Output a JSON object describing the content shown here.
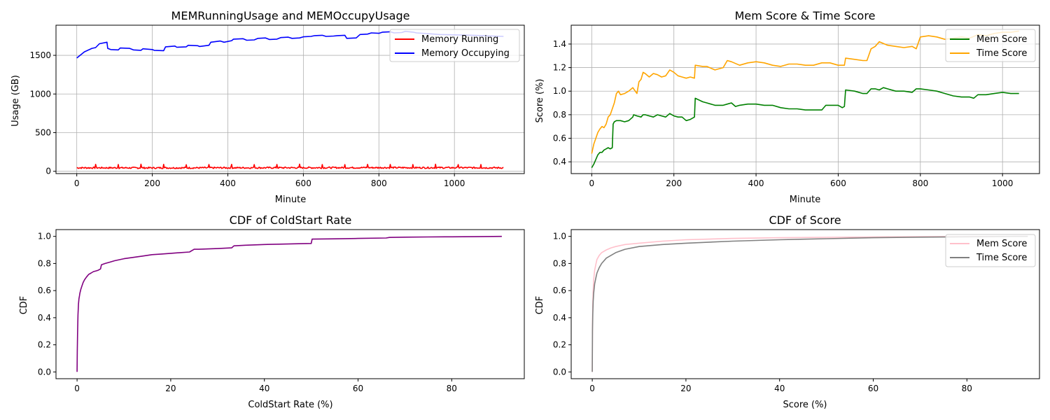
{
  "chart_data": [
    {
      "type": "line",
      "title": "MEMRunningUsage and MEMOccupyUsage",
      "xlabel": "Minute",
      "ylabel": "Usage (GB)",
      "xlim": [
        -55,
        1185
      ],
      "ylim": [
        -30,
        1890
      ],
      "xticks": [
        0,
        200,
        400,
        600,
        800,
        1000
      ],
      "yticks": [
        0,
        500,
        1000,
        1500
      ],
      "grid": true,
      "legend_position": "upper-right",
      "series": [
        {
          "name": "Memory Running",
          "color": "#ff0000",
          "baseline_x": [
            0,
            200,
            400,
            600,
            800,
            1000,
            1130
          ],
          "baseline_y": [
            45,
            44,
            45,
            46,
            47,
            46,
            45
          ],
          "noise_amplitude": 10,
          "spikes_x": [
            50,
            110,
            170,
            230,
            290,
            350,
            410,
            470,
            530,
            590,
            650,
            710,
            770,
            830,
            890,
            950,
            1010,
            1070
          ],
          "spikes_y": [
            90,
            88,
            92,
            90,
            85,
            88,
            90,
            87,
            89,
            92,
            88,
            87,
            90,
            89,
            88,
            91,
            87,
            88
          ]
        },
        {
          "name": "Memory Occupying",
          "color": "#0000ff",
          "x": [
            0,
            20,
            40,
            50,
            60,
            80,
            82,
            90,
            110,
            115,
            140,
            150,
            170,
            175,
            200,
            205,
            230,
            235,
            260,
            265,
            290,
            295,
            320,
            325,
            350,
            355,
            380,
            390,
            410,
            415,
            440,
            450,
            470,
            480,
            500,
            510,
            530,
            540,
            560,
            570,
            590,
            600,
            620,
            630,
            650,
            660,
            680,
            690,
            710,
            715,
            740,
            750,
            770,
            780,
            800,
            810,
            830,
            840,
            860,
            870,
            890,
            900,
            930,
            960,
            1000,
            1050,
            1130
          ],
          "y": [
            1465,
            1545,
            1590,
            1600,
            1650,
            1670,
            1590,
            1575,
            1570,
            1595,
            1590,
            1570,
            1565,
            1585,
            1575,
            1565,
            1560,
            1610,
            1620,
            1605,
            1610,
            1630,
            1625,
            1615,
            1630,
            1670,
            1685,
            1670,
            1690,
            1710,
            1715,
            1695,
            1700,
            1720,
            1725,
            1705,
            1710,
            1730,
            1735,
            1720,
            1725,
            1740,
            1745,
            1755,
            1760,
            1745,
            1750,
            1755,
            1760,
            1720,
            1725,
            1770,
            1775,
            1790,
            1785,
            1800,
            1805,
            1790,
            1795,
            1810,
            1800,
            1790,
            1780,
            1770,
            1765,
            1760,
            1745
          ]
        }
      ]
    },
    {
      "type": "line",
      "title": "Mem Score & Time Score",
      "xlabel": "Minute",
      "ylabel": "Score (%)",
      "xlim": [
        -50,
        1090
      ],
      "ylim": [
        0.3,
        1.56
      ],
      "xticks": [
        0,
        200,
        400,
        600,
        800,
        1000
      ],
      "yticks": [
        0.4,
        0.6,
        0.8,
        1.0,
        1.2,
        1.4
      ],
      "grid": true,
      "legend_position": "upper-right",
      "series": [
        {
          "name": "Mem Score",
          "color": "#008000",
          "x": [
            0,
            5,
            10,
            15,
            20,
            25,
            30,
            35,
            40,
            45,
            50,
            52,
            55,
            60,
            70,
            80,
            90,
            100,
            102,
            110,
            120,
            125,
            130,
            140,
            150,
            160,
            170,
            180,
            190,
            200,
            210,
            220,
            230,
            240,
            250,
            252,
            270,
            280,
            300,
            320,
            330,
            340,
            350,
            360,
            380,
            400,
            420,
            440,
            460,
            480,
            500,
            520,
            540,
            560,
            570,
            580,
            600,
            610,
            615,
            618,
            640,
            660,
            670,
            680,
            690,
            700,
            710,
            720,
            740,
            760,
            780,
            790,
            800,
            820,
            840,
            860,
            880,
            900,
            920,
            930,
            940,
            960,
            980,
            1000,
            1020,
            1040
          ],
          "y": [
            0.35,
            0.38,
            0.42,
            0.46,
            0.48,
            0.48,
            0.5,
            0.51,
            0.52,
            0.51,
            0.52,
            0.72,
            0.74,
            0.75,
            0.75,
            0.74,
            0.75,
            0.78,
            0.8,
            0.79,
            0.78,
            0.8,
            0.8,
            0.79,
            0.78,
            0.8,
            0.79,
            0.78,
            0.81,
            0.79,
            0.78,
            0.78,
            0.75,
            0.76,
            0.78,
            0.94,
            0.91,
            0.9,
            0.88,
            0.88,
            0.89,
            0.9,
            0.87,
            0.88,
            0.89,
            0.89,
            0.88,
            0.88,
            0.86,
            0.85,
            0.85,
            0.84,
            0.84,
            0.84,
            0.88,
            0.88,
            0.88,
            0.86,
            0.87,
            1.01,
            1.0,
            0.98,
            0.98,
            1.02,
            1.02,
            1.01,
            1.03,
            1.02,
            1.0,
            1.0,
            0.99,
            1.02,
            1.02,
            1.01,
            1.0,
            0.98,
            0.96,
            0.95,
            0.95,
            0.94,
            0.97,
            0.97,
            0.98,
            0.99,
            0.98,
            0.98
          ]
        },
        {
          "name": "Time Score",
          "color": "#ffa500",
          "x": [
            0,
            5,
            10,
            15,
            20,
            25,
            30,
            35,
            40,
            45,
            50,
            55,
            60,
            65,
            70,
            80,
            90,
            100,
            110,
            115,
            120,
            125,
            130,
            140,
            150,
            160,
            170,
            180,
            190,
            200,
            210,
            220,
            230,
            240,
            250,
            252,
            270,
            280,
            300,
            320,
            330,
            340,
            360,
            380,
            400,
            420,
            440,
            460,
            480,
            500,
            520,
            540,
            560,
            580,
            600,
            610,
            615,
            618,
            640,
            660,
            670,
            680,
            690,
            700,
            720,
            740,
            760,
            780,
            790,
            800,
            820,
            840,
            860,
            880,
            900,
            920,
            940,
            960,
            980,
            1000,
            1020,
            1040
          ],
          "y": [
            0.47,
            0.55,
            0.6,
            0.65,
            0.68,
            0.7,
            0.69,
            0.72,
            0.78,
            0.8,
            0.85,
            0.9,
            0.98,
            1.0,
            0.97,
            0.98,
            1.0,
            1.03,
            0.98,
            1.08,
            1.1,
            1.16,
            1.15,
            1.12,
            1.15,
            1.14,
            1.12,
            1.13,
            1.18,
            1.16,
            1.13,
            1.12,
            1.11,
            1.12,
            1.11,
            1.22,
            1.21,
            1.21,
            1.18,
            1.2,
            1.26,
            1.25,
            1.22,
            1.24,
            1.25,
            1.24,
            1.22,
            1.21,
            1.23,
            1.23,
            1.22,
            1.22,
            1.24,
            1.24,
            1.22,
            1.22,
            1.22,
            1.28,
            1.27,
            1.26,
            1.26,
            1.36,
            1.38,
            1.42,
            1.39,
            1.38,
            1.37,
            1.38,
            1.36,
            1.46,
            1.47,
            1.46,
            1.44,
            1.45,
            1.46,
            1.45,
            1.48,
            1.47,
            1.49,
            1.5,
            1.5,
            1.51
          ]
        }
      ]
    },
    {
      "type": "line",
      "title": "CDF of ColdStart Rate",
      "xlabel": "ColdStart Rate (%)",
      "ylabel": "CDF",
      "xlim": [
        -4.5,
        95.5
      ],
      "ylim": [
        -0.05,
        1.05
      ],
      "xticks": [
        0,
        20,
        40,
        60,
        80
      ],
      "yticks": [
        0.0,
        0.2,
        0.4,
        0.6,
        0.8,
        1.0
      ],
      "grid": false,
      "series": [
        {
          "name": "",
          "color": "#800080",
          "x": [
            0,
            0.05,
            0.1,
            0.2,
            0.3,
            0.4,
            0.5,
            0.6,
            0.8,
            1,
            1.3,
            1.6,
            2,
            2.5,
            3,
            3.5,
            4,
            4.5,
            5,
            5.2,
            6,
            7,
            8,
            10,
            12,
            14,
            16,
            18,
            20,
            22,
            24,
            25,
            26,
            30,
            33,
            33.5,
            36,
            40,
            44,
            48,
            50,
            50.2,
            55,
            60,
            66,
            66.7,
            70,
            75,
            80,
            85,
            90.7
          ],
          "y": [
            0.0,
            0.15,
            0.28,
            0.42,
            0.5,
            0.54,
            0.56,
            0.58,
            0.61,
            0.63,
            0.66,
            0.68,
            0.7,
            0.72,
            0.73,
            0.74,
            0.745,
            0.75,
            0.76,
            0.79,
            0.8,
            0.81,
            0.82,
            0.835,
            0.845,
            0.855,
            0.865,
            0.87,
            0.875,
            0.88,
            0.885,
            0.905,
            0.905,
            0.91,
            0.915,
            0.93,
            0.935,
            0.94,
            0.943,
            0.946,
            0.948,
            0.98,
            0.982,
            0.985,
            0.988,
            0.992,
            0.994,
            0.996,
            0.997,
            0.998,
            1.0
          ]
        }
      ]
    },
    {
      "type": "line",
      "title": "CDF of Score",
      "xlabel": "Score (%)",
      "ylabel": "CDF",
      "xlim": [
        -4.5,
        95.5
      ],
      "ylim": [
        -0.05,
        1.05
      ],
      "xticks": [
        0,
        20,
        40,
        60,
        80
      ],
      "yticks": [
        0.0,
        0.2,
        0.4,
        0.6,
        0.8,
        1.0
      ],
      "grid": false,
      "legend_position": "upper-right",
      "series": [
        {
          "name": "Mem Score",
          "color": "#ffc0cb",
          "x": [
            0,
            0.05,
            0.1,
            0.2,
            0.3,
            0.5,
            0.8,
            1,
            1.5,
            2,
            3,
            4,
            5,
            7,
            10,
            15,
            20,
            30,
            40,
            50,
            60,
            70,
            80,
            90,
            93
          ],
          "y": [
            0.0,
            0.35,
            0.5,
            0.6,
            0.68,
            0.75,
            0.8,
            0.83,
            0.86,
            0.88,
            0.9,
            0.915,
            0.925,
            0.94,
            0.95,
            0.965,
            0.975,
            0.985,
            0.99,
            0.993,
            0.996,
            0.998,
            0.999,
            1.0,
            1.0
          ]
        },
        {
          "name": "Time Score",
          "color": "#808080",
          "x": [
            0,
            0.05,
            0.1,
            0.2,
            0.3,
            0.5,
            0.8,
            1,
            1.5,
            2,
            3,
            4,
            5,
            7,
            10,
            15,
            20,
            30,
            40,
            50,
            60,
            70,
            80,
            90,
            93
          ],
          "y": [
            0.0,
            0.3,
            0.42,
            0.52,
            0.58,
            0.65,
            0.7,
            0.73,
            0.77,
            0.8,
            0.84,
            0.86,
            0.88,
            0.905,
            0.925,
            0.94,
            0.95,
            0.965,
            0.975,
            0.983,
            0.99,
            0.994,
            0.997,
            1.0,
            1.0
          ]
        }
      ]
    }
  ]
}
